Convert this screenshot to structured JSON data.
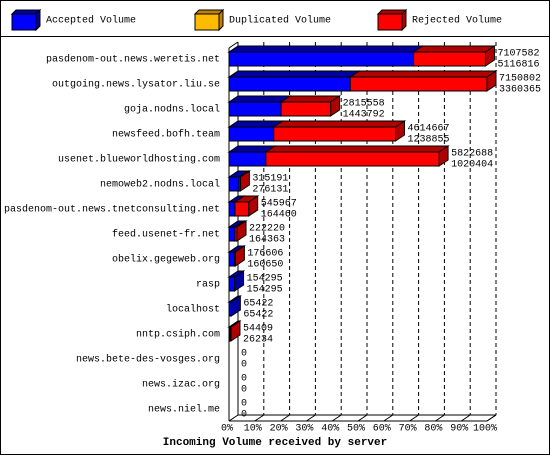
{
  "chart_data": {
    "type": "stacked-bar-3d",
    "xlabel": "Incoming Volume received by server",
    "categories": [
      "pasdenom-out.news.weretis.net",
      "outgoing.news.lysator.liu.se",
      "goja.nodns.local",
      "newsfeed.bofh.team",
      "usenet.blueworldhosting.com",
      "nemoweb2.nodns.local",
      "pasdenom-out.news.tnetconsulting.net",
      "feed.usenet-fr.net",
      "obelix.gegeweb.org",
      "rasp",
      "localhost",
      "nntp.csiph.com",
      "news.bete-des-vosges.org",
      "news.izac.org",
      "news.niel.me"
    ],
    "totals": [
      7107582,
      7150802,
      2815558,
      4614667,
      5822688,
      315191,
      545967,
      222220,
      176606,
      154295,
      65422,
      54409,
      0,
      0,
      0
    ],
    "series": [
      {
        "name": "Accepted Volume",
        "color": "#0000ff",
        "side_color": "#0000a0",
        "values": [
          5116816,
          3360365,
          1443792,
          1238855,
          1020404,
          276131,
          164460,
          164363,
          160650,
          154295,
          65422,
          26234,
          0,
          0,
          0
        ]
      },
      {
        "name": "Duplicated Volume",
        "color": "#ffbb00",
        "side_color": "#c08000",
        "values": [
          0,
          0,
          0,
          0,
          0,
          0,
          0,
          0,
          0,
          0,
          0,
          0,
          0,
          0,
          0
        ]
      },
      {
        "name": "Rejected Volume",
        "color": "#ff0000",
        "side_color": "#b00000",
        "values": [
          1990766,
          3790437,
          1371766,
          3375812,
          4802284,
          39060,
          381507,
          57857,
          15956,
          0,
          0,
          28175,
          0,
          0,
          0
        ]
      }
    ],
    "xlim": [
      0,
      7150802
    ],
    "xticks": [
      {
        "value": 0,
        "label": "0%"
      },
      {
        "value": 715080.2,
        "label": "10%"
      },
      {
        "value": 1430160.4,
        "label": "20%"
      },
      {
        "value": 2145240.6,
        "label": "30%"
      },
      {
        "value": 2860320.8,
        "label": "40%"
      },
      {
        "value": 3575401,
        "label": "50%"
      },
      {
        "value": 4290481.2,
        "label": "60%"
      },
      {
        "value": 5005561.4,
        "label": "70%"
      },
      {
        "value": 5720641.6,
        "label": "80%"
      },
      {
        "value": 6435721.8,
        "label": "90%"
      },
      {
        "value": 7150802,
        "label": "100%"
      }
    ],
    "grid": true
  }
}
